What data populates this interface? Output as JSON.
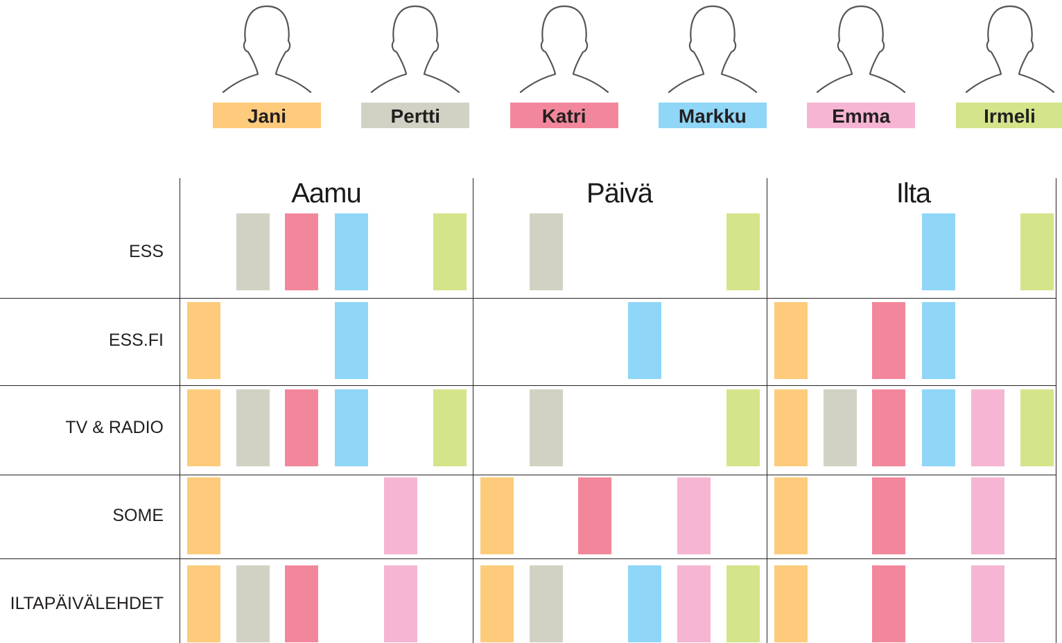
{
  "people": [
    {
      "name": "Jani",
      "color": "#fdcb7b"
    },
    {
      "name": "Pertti",
      "color": "#d1d2c3"
    },
    {
      "name": "Katri",
      "color": "#f2879b"
    },
    {
      "name": "Markku",
      "color": "#8fd6f7"
    },
    {
      "name": "Emma",
      "color": "#f6b5d3"
    },
    {
      "name": "Irmeli",
      "color": "#d3e48a"
    }
  ],
  "chart_data": {
    "type": "table",
    "periods": [
      "Aamu",
      "Päivä",
      "Ilta"
    ],
    "rows": [
      "ESS",
      "ESS.FI",
      "TV & RADIO",
      "SOME",
      "ILTAPÄIVÄLEHDET"
    ],
    "presence": [
      {
        "row": "ESS",
        "Aamu": [
          "Pertti",
          "Katri",
          "Markku",
          "Irmeli"
        ],
        "Päivä": [
          "Pertti",
          "Irmeli"
        ],
        "Ilta": [
          "Markku",
          "Irmeli"
        ]
      },
      {
        "row": "ESS.FI",
        "Aamu": [
          "Jani",
          "Markku"
        ],
        "Päivä": [
          "Markku"
        ],
        "Ilta": [
          "Jani",
          "Katri",
          "Markku"
        ]
      },
      {
        "row": "TV & RADIO",
        "Aamu": [
          "Jani",
          "Pertti",
          "Katri",
          "Markku",
          "Irmeli"
        ],
        "Päivä": [
          "Pertti",
          "Irmeli"
        ],
        "Ilta": [
          "Jani",
          "Pertti",
          "Katri",
          "Markku",
          "Emma",
          "Irmeli"
        ]
      },
      {
        "row": "SOME",
        "Aamu": [
          "Jani",
          "Emma"
        ],
        "Päivä": [
          "Jani",
          "Katri",
          "Emma"
        ],
        "Ilta": [
          "Jani",
          "Katri",
          "Emma"
        ]
      },
      {
        "row": "ILTAPÄIVÄLEHDET",
        "Aamu": [
          "Jani",
          "Pertti",
          "Katri",
          "Emma"
        ],
        "Päivä": [
          "Jani",
          "Pertti",
          "Markku",
          "Emma",
          "Irmeli"
        ],
        "Ilta": [
          "Jani",
          "Katri",
          "Emma"
        ]
      }
    ]
  }
}
